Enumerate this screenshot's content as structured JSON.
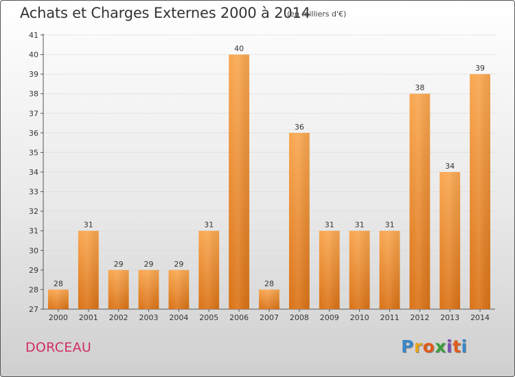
{
  "title": "Achats et Charges Externes 2000 à 2014",
  "subtitle": "(en milliers d'€)",
  "place": "DORCEAU",
  "logo": {
    "text": "Proxiti"
  },
  "colors": {
    "bar_light": "#f7a24a",
    "bar_dark": "#dc7418",
    "place": "#d02d62"
  },
  "chart_data": {
    "type": "bar",
    "categories": [
      "2000",
      "2001",
      "2002",
      "2003",
      "2004",
      "2005",
      "2006",
      "2007",
      "2008",
      "2009",
      "2010",
      "2011",
      "2012",
      "2013",
      "2014"
    ],
    "values": [
      28,
      31,
      29,
      29,
      29,
      31,
      40,
      28,
      36,
      31,
      31,
      31,
      38,
      34,
      39
    ],
    "ylim": [
      27,
      41
    ],
    "yticks": [
      27,
      28,
      29,
      30,
      31,
      32,
      33,
      34,
      35,
      36,
      37,
      38,
      39,
      40,
      41
    ],
    "grid": true,
    "xlabel": "",
    "ylabel": ""
  }
}
